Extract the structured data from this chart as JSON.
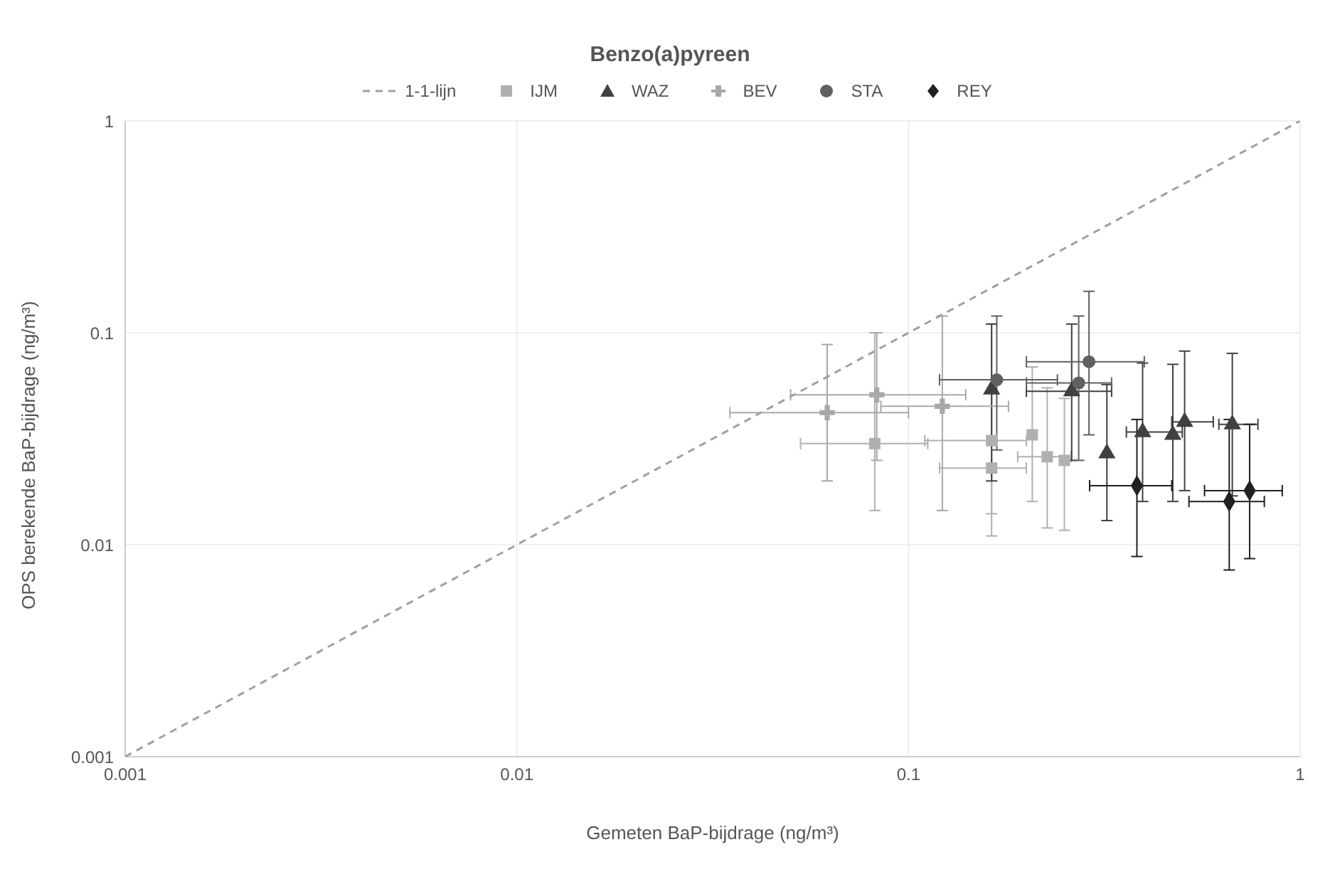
{
  "chart_data": {
    "type": "scatter",
    "title": "Benzo(a)pyreen",
    "xlabel": "Gemeten BaP-bijdrage (ng/m³)",
    "ylabel": "OPS berekende BaP-bijdrage (ng/m³)",
    "log": "xy",
    "xlim": [
      0.001,
      1
    ],
    "ylim": [
      0.001,
      1
    ],
    "xticks": [
      0.001,
      0.01,
      0.1,
      1
    ],
    "yticks": [
      0.001,
      0.01,
      0.1,
      1
    ],
    "grid": true,
    "legend": "top",
    "series": [
      {
        "name": "1-1-lijn",
        "type": "line",
        "line_style": "dashed",
        "marker": "none",
        "color": "#a0a0a0",
        "x": [
          0.001,
          1
        ],
        "values": [
          0.001,
          1
        ]
      },
      {
        "name": "IJM",
        "marker": "square",
        "color": "#b0b0b0",
        "x": [
          0.082,
          0.163,
          0.163,
          0.207,
          0.226,
          0.25
        ],
        "values": [
          0.03,
          0.031,
          0.023,
          0.033,
          0.026,
          0.025
        ],
        "errors": [
          [
            0.0145,
            0.1
          ],
          [
            0.014,
            0.11
          ],
          [
            0.011,
            0.06
          ],
          [
            0.016,
            0.069
          ],
          [
            0.012,
            0.055
          ],
          [
            0.0117,
            0.049
          ]
        ],
        "xerrors": [
          [
            0.053,
            0.112
          ],
          [
            0.11,
            0.2
          ],
          [
            0.12,
            0.2
          ],
          null,
          [
            0.19,
            0.26
          ],
          null
        ]
      },
      {
        "name": "WAZ",
        "marker": "triangle",
        "color": "#404040",
        "x": [
          0.163,
          0.261,
          0.321,
          0.396,
          0.473,
          0.507,
          0.671
        ],
        "values": [
          0.054,
          0.053,
          0.027,
          0.034,
          0.033,
          0.038,
          0.037
        ],
        "errors": [
          [
            0.02,
            0.11
          ],
          [
            0.025,
            0.11
          ],
          [
            0.013,
            0.057
          ],
          [
            0.016,
            0.072
          ],
          [
            0.016,
            0.071
          ],
          [
            0.018,
            0.082
          ],
          [
            0.017,
            0.08
          ]
        ],
        "xerrors": [
          null,
          [
            0.2,
            0.33
          ],
          null,
          [
            0.36,
            0.5
          ],
          null,
          [
            0.47,
            0.6
          ],
          [
            0.62,
            0.78
          ]
        ]
      },
      {
        "name": "BEV",
        "marker": "cross",
        "color": "#a8a8a8",
        "x": [
          0.062,
          0.083,
          0.122
        ],
        "values": [
          0.042,
          0.051,
          0.045
        ],
        "errors": [
          [
            0.02,
            0.088
          ],
          [
            0.025,
            0.1
          ],
          [
            0.0145,
            0.12
          ]
        ],
        "xerrors": [
          [
            0.035,
            0.1
          ],
          [
            0.05,
            0.14
          ],
          [
            0.085,
            0.18
          ]
        ]
      },
      {
        "name": "STA",
        "marker": "circle",
        "color": "#606060",
        "x": [
          0.168,
          0.272,
          0.289
        ],
        "values": [
          0.06,
          0.058,
          0.073
        ],
        "errors": [
          [
            0.028,
            0.12
          ],
          [
            0.025,
            0.12
          ],
          [
            0.033,
            0.157
          ]
        ],
        "xerrors": [
          [
            0.12,
            0.24
          ],
          [
            0.2,
            0.33
          ],
          [
            0.2,
            0.4
          ]
        ]
      },
      {
        "name": "REY",
        "marker": "diamond",
        "color": "#202020",
        "x": [
          0.383,
          0.659,
          0.743
        ],
        "values": [
          0.019,
          0.016,
          0.018
        ],
        "errors": [
          [
            0.0088,
            0.039
          ],
          [
            0.0076,
            0.039
          ],
          [
            0.0086,
            0.037
          ]
        ],
        "xerrors": [
          [
            0.29,
            0.47
          ],
          [
            0.52,
            0.81
          ],
          [
            0.57,
            0.9
          ]
        ]
      }
    ]
  }
}
